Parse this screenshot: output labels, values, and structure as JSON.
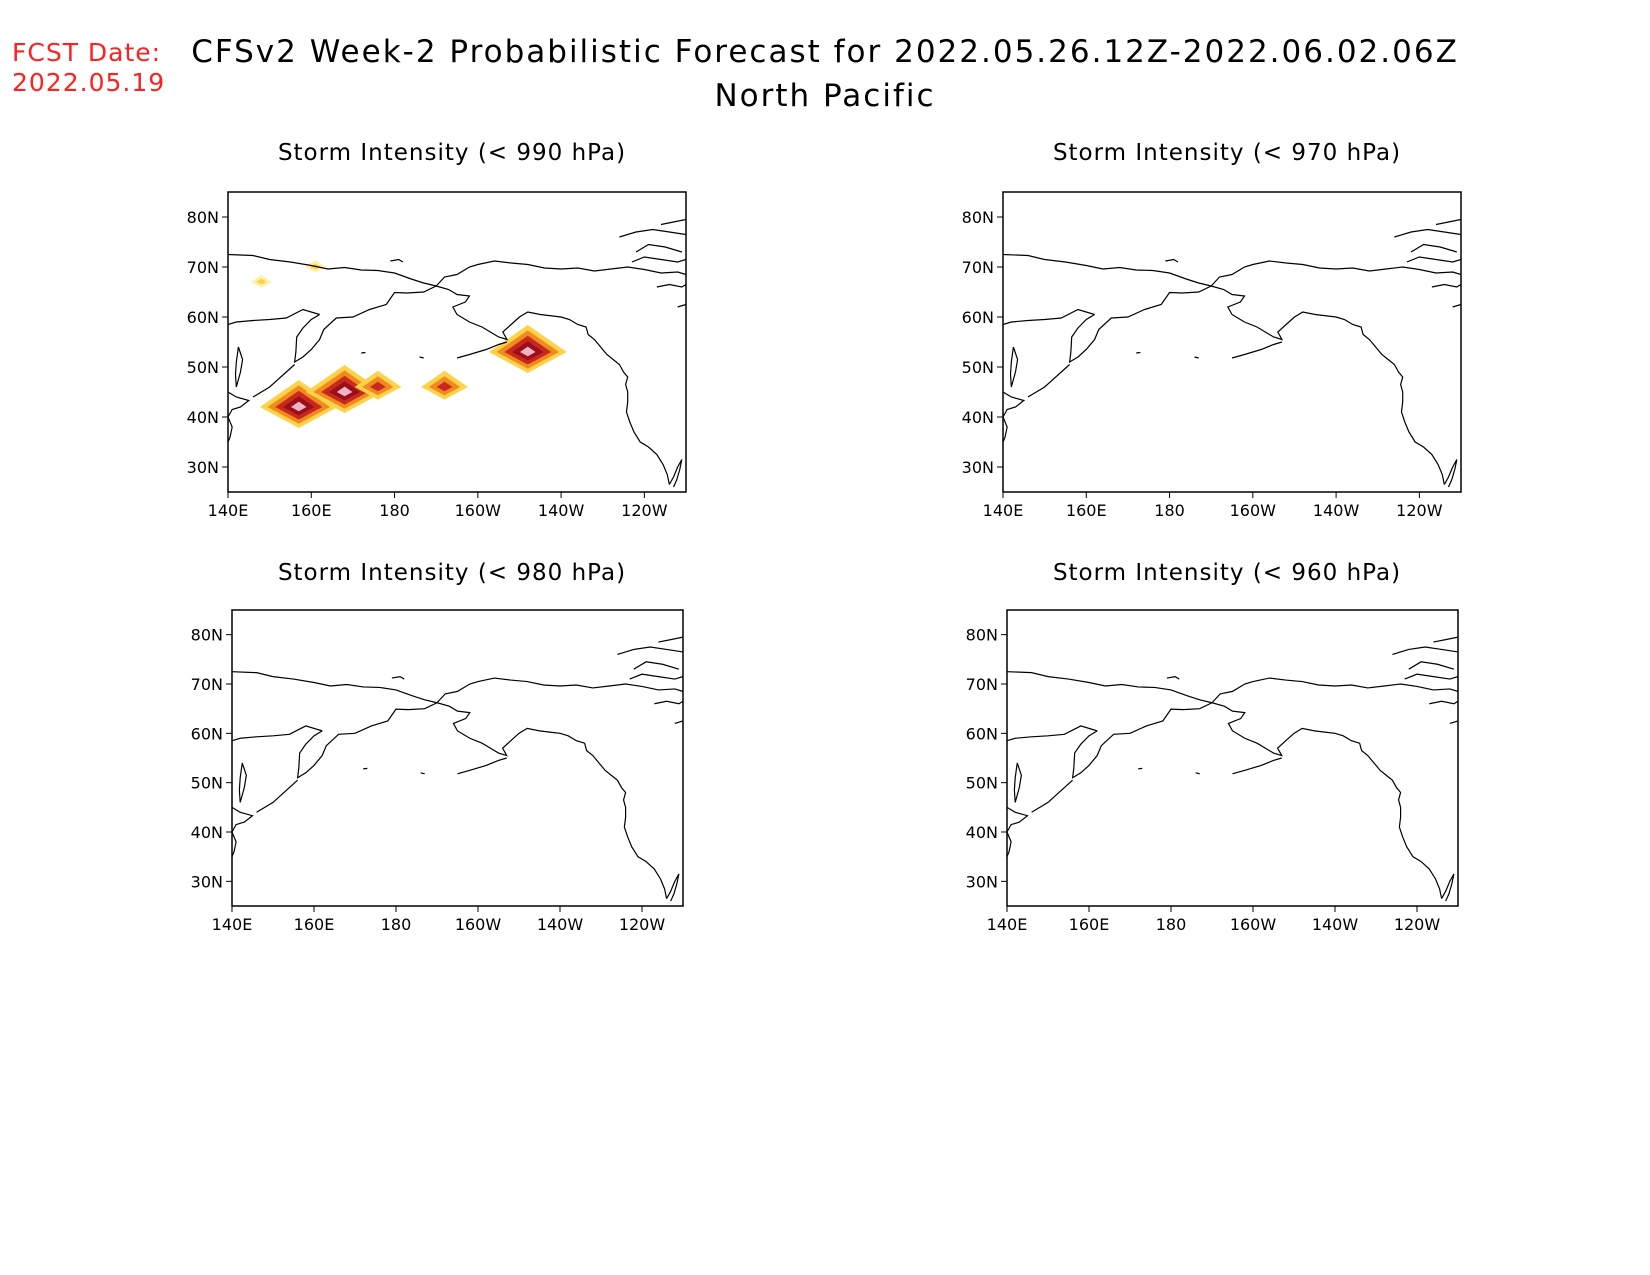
{
  "header": {
    "fcst_label": "FCST Date:",
    "fcst_date": "2022.05.19",
    "title": "CFSv2 Week-2 Probabilistic Forecast for 2022.05.26.12Z-2022.06.02.06Z",
    "region": "North Pacific"
  },
  "axes": {
    "lon_ticks": [
      "140E",
      "160E",
      "180",
      "160W",
      "140W",
      "120W"
    ],
    "lat_ticks": [
      "80N",
      "70N",
      "60N",
      "50N",
      "40N",
      "30N"
    ]
  },
  "colors": {
    "light": "#fff2b0",
    "yellow": "#ffd24a",
    "orange": "#f08a1e",
    "red": "#c8281e",
    "darkred": "#9a0f1a",
    "pink": "#f0b4c8",
    "coast": "#000000"
  },
  "panels": [
    {
      "title": "Storm Intensity (< 990 hPa)",
      "blobs": [
        {
          "lon": 157,
          "lat": 42,
          "level": "high"
        },
        {
          "lon": 168,
          "lat": 45,
          "level": "high"
        },
        {
          "lon": 176,
          "lat": 46,
          "level": "mid"
        },
        {
          "lon": 192,
          "lat": 46,
          "level": "mid"
        },
        {
          "lon": 212,
          "lat": 53,
          "level": "high"
        },
        {
          "lon": 148,
          "lat": 67,
          "level": "low"
        },
        {
          "lon": 161,
          "lat": 70,
          "level": "low"
        }
      ]
    },
    {
      "title": "Storm Intensity (< 970 hPa)",
      "blobs": []
    },
    {
      "title": "Storm Intensity (< 980 hPa)",
      "blobs": []
    },
    {
      "title": "Storm Intensity (< 960 hPa)",
      "blobs": []
    }
  ]
}
